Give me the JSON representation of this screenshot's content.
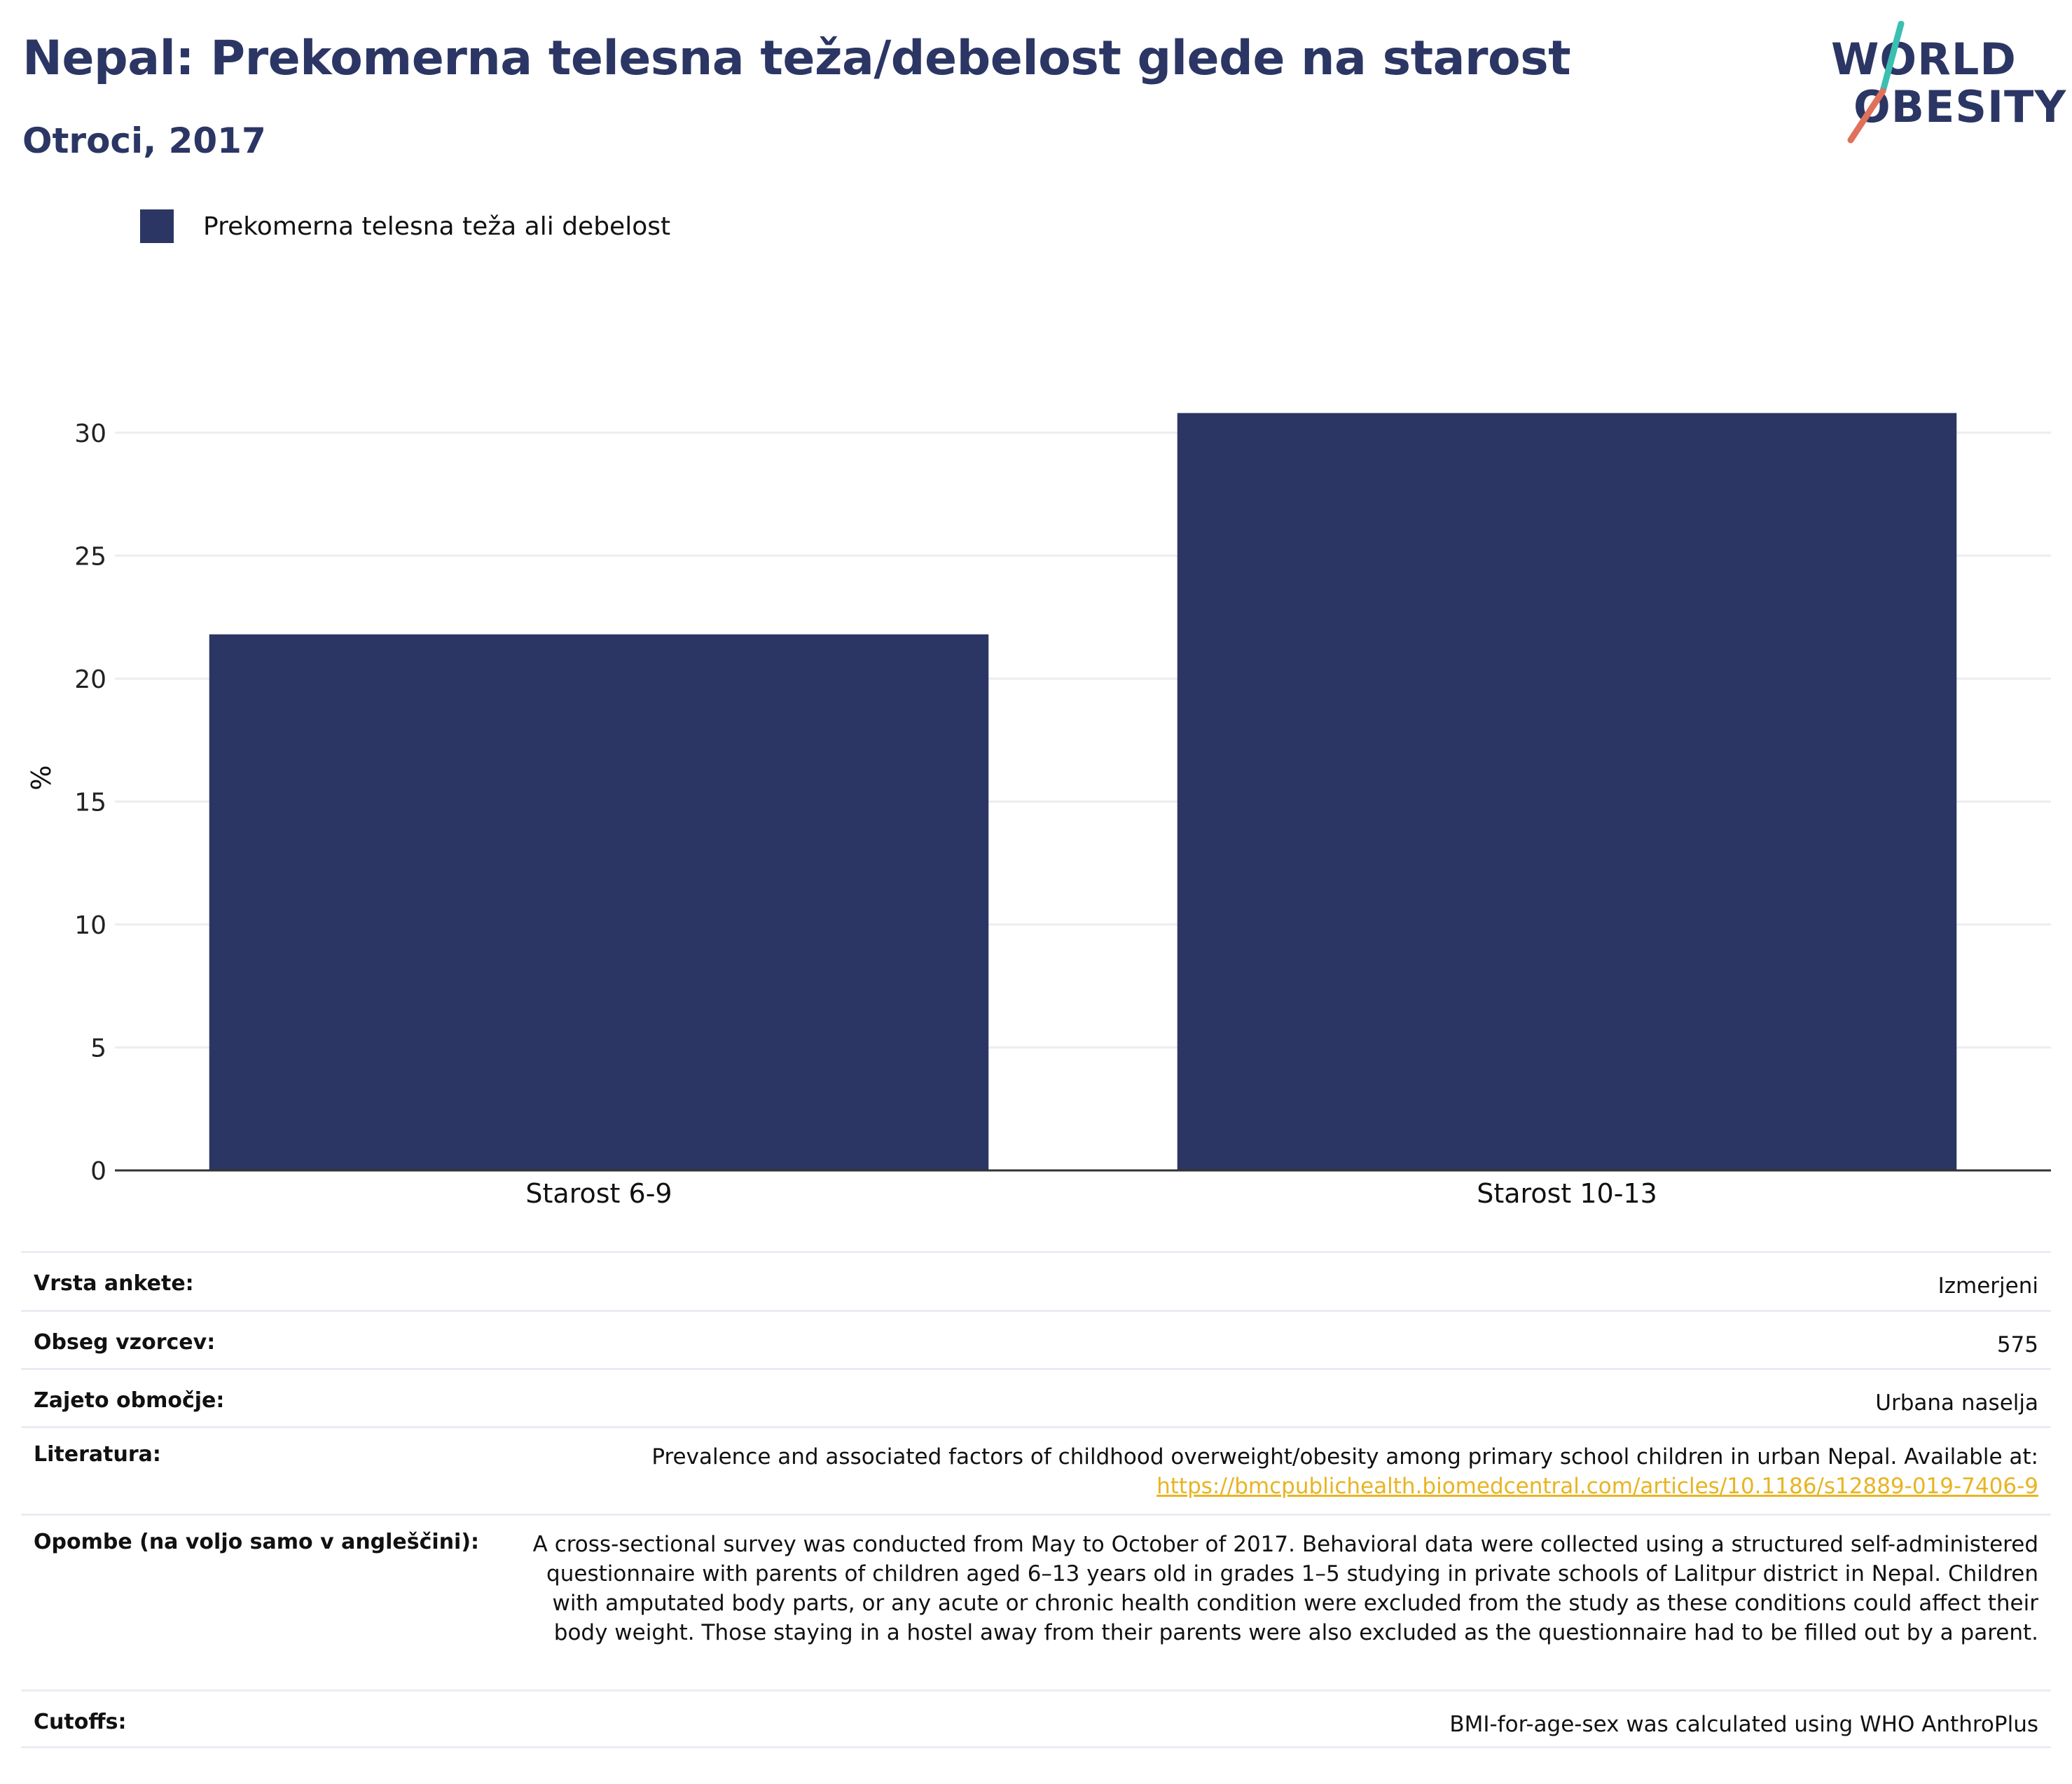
{
  "header": {
    "title": "Nepal: Prekomerna telesna teža/debelost glede na starost",
    "subtitle": "Otroci, 2017"
  },
  "logo": {
    "line1": "WORLD",
    "line2": "OBESITY",
    "accent_colors": [
      "#3bbfb0",
      "#e0715a"
    ]
  },
  "legend": {
    "label": "Prekomerna telesna teža ali debelost"
  },
  "colors": {
    "bar": "#2b3664",
    "grid": "#ebedf1",
    "axis": "#333333",
    "link": "#e8b422"
  },
  "chart_data": {
    "type": "bar",
    "categories": [
      "Starost 6-9",
      "Starost 10-13"
    ],
    "series": [
      {
        "name": "Prekomerna telesna teža ali debelost",
        "values": [
          21.8,
          30.8
        ]
      }
    ],
    "ylabel": "%",
    "xlabel": "",
    "ylim": [
      0,
      32.5
    ],
    "yticks": [
      0,
      5,
      10,
      15,
      20,
      25,
      30
    ],
    "grid": true,
    "legend_position": "top-left"
  },
  "survey": {
    "rows": [
      {
        "label": "Vrsta ankete:",
        "value": "Izmerjeni"
      },
      {
        "label": "Obseg vzorcev:",
        "value": "575"
      },
      {
        "label": "Zajeto območje:",
        "value": "Urbana naselja"
      },
      {
        "label": "Literatura:",
        "value": "Prevalence and associated factors of childhood overweight/obesity among primary school children in urban Nepal. Available at:",
        "link": "https://bmcpublichealth.biomedcentral.com/articles/10.1186/s12889-019-7406-9"
      },
      {
        "label": "Opombe (na voljo samo v angleščini):",
        "value": "A cross-sectional survey was conducted from May to October of 2017. Behavioral data were collected using a structured self-administered questionnaire with parents of children aged 6–13 years old in grades 1–5 studying in private schools of Lalitpur district in Nepal. Children with amputated body parts, or any acute or chronic health condition were excluded from the study as these conditions could affect their body weight. Those staying in a hostel away from their parents were also excluded as the questionnaire had to be filled out by a parent."
      },
      {
        "label": "Cutoffs:",
        "value": "BMI-for-age-sex was calculated using WHO AnthroPlus"
      }
    ]
  }
}
